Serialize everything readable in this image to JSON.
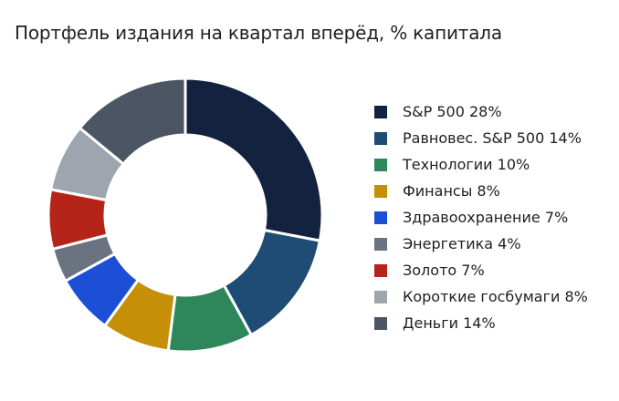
{
  "chart_data": {
    "type": "pie",
    "title": "Портфель издания на квартал вперёд, % капитала",
    "legend_position": "right",
    "donut": true,
    "slices": [
      {
        "label": "S&P 500",
        "value": 28,
        "legend": "S&P 500 28%",
        "color": "#13233f"
      },
      {
        "label": "Равновес. S&P 500",
        "value": 14,
        "legend": "Равновес. S&P 500 14%",
        "color": "#1e4c74"
      },
      {
        "label": "Технологии",
        "value": 10,
        "legend": "Технологии 10%",
        "color": "#2d875a"
      },
      {
        "label": "Финансы",
        "value": 8,
        "legend": "Финансы 8%",
        "color": "#c58f08"
      },
      {
        "label": "Здравоохранение",
        "value": 7,
        "legend": "Здравоохранение 7%",
        "color": "#1d4ed6"
      },
      {
        "label": "Энергетика",
        "value": 4,
        "legend": "Энергетика 4%",
        "color": "#6b7380"
      },
      {
        "label": "Золото",
        "value": 7,
        "legend": "Золото 7%",
        "color": "#b42418"
      },
      {
        "label": "Короткие госбумаги",
        "value": 8,
        "legend": "Короткие госбумаги 8%",
        "color": "#9fa5ae"
      },
      {
        "label": "Деньги",
        "value": 14,
        "legend": "Деньги 14%",
        "color": "#4b5563"
      }
    ]
  }
}
